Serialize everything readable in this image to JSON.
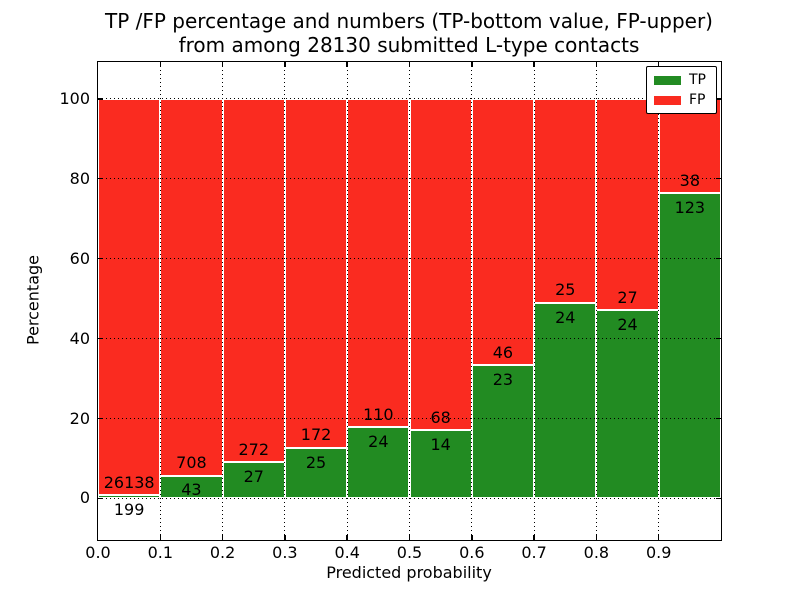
{
  "title": {
    "line1": "TP /FP percentage and numbers (TP-bottom value, FP-upper)",
    "line2": "from among 28130 submitted L-type contacts"
  },
  "chart_data": {
    "type": "bar",
    "stacked": true,
    "title": "TP /FP percentage and numbers (TP-bottom value, FP-upper) from among 28130 submitted L-type contacts",
    "xlabel": "Predicted probability",
    "ylabel": "Percentage",
    "bin_edges": [
      0.0,
      0.1,
      0.2,
      0.3,
      0.4,
      0.5,
      0.6,
      0.7,
      0.8,
      0.9,
      1.0
    ],
    "categories": [
      "0.0-0.1",
      "0.1-0.2",
      "0.2-0.3",
      "0.3-0.4",
      "0.4-0.5",
      "0.5-0.6",
      "0.6-0.7",
      "0.7-0.8",
      "0.8-0.9",
      "0.9-1.0"
    ],
    "series": [
      {
        "name": "TP",
        "color": "#228b22",
        "counts": [
          199,
          43,
          27,
          25,
          24,
          14,
          23,
          24,
          24,
          123
        ],
        "percentages": [
          0.76,
          5.73,
          9.03,
          12.69,
          17.91,
          17.07,
          33.33,
          48.98,
          47.06,
          76.4
        ]
      },
      {
        "name": "FP",
        "color": "#fa2b20",
        "counts": [
          26138,
          708,
          272,
          172,
          110,
          68,
          46,
          25,
          27,
          38
        ],
        "percentages": [
          99.24,
          94.27,
          90.97,
          87.31,
          82.09,
          82.93,
          66.67,
          51.02,
          52.94,
          23.6
        ]
      }
    ],
    "xticks": {
      "values": [
        0.0,
        0.1,
        0.2,
        0.3,
        0.4,
        0.5,
        0.6,
        0.7,
        0.8,
        0.9
      ],
      "labels": [
        "0.0",
        "0.1",
        "0.2",
        "0.3",
        "0.4",
        "0.5",
        "0.6",
        "0.7",
        "0.8",
        "0.9"
      ]
    },
    "yticks": [
      0,
      20,
      40,
      60,
      80,
      100
    ],
    "xlim": [
      0.0,
      1.0
    ],
    "ylim": [
      -10.4,
      109.2
    ],
    "grid": {
      "style": "dotted",
      "color": "#000000"
    },
    "bar_edge_color": "#ffffff",
    "legend": {
      "position": "upper-right",
      "entries": [
        {
          "label": "TP",
          "color": "#228b22"
        },
        {
          "label": "FP",
          "color": "#fa2b20"
        }
      ]
    }
  }
}
